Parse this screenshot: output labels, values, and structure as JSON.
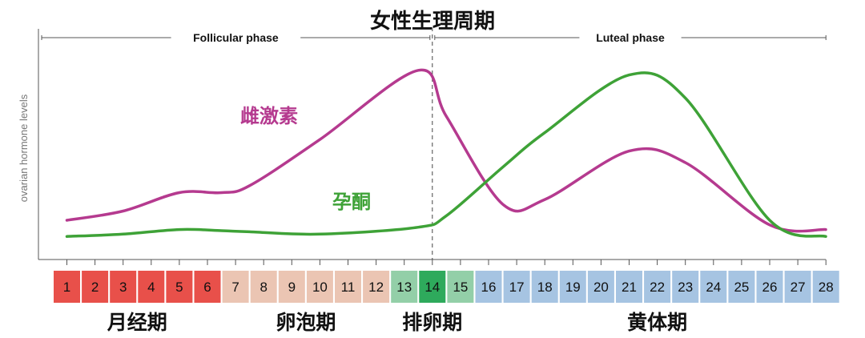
{
  "chart_data": {
    "type": "line",
    "title": "女性生理周期",
    "ylabel": "ovarian hormone levels",
    "xlabel": "",
    "x": [
      1,
      3,
      5,
      6.5,
      7.5,
      10,
      13.5,
      14.5,
      16.5,
      18,
      21,
      23,
      26,
      28
    ],
    "xlim": [
      0.5,
      28
    ],
    "ylim": [
      0,
      100
    ],
    "grid": false,
    "series": [
      {
        "name": "雌激素",
        "color": "#b53a8f",
        "values": [
          17,
          21,
          29,
          29,
          32,
          52,
          82,
          62,
          24,
          26,
          47,
          42,
          15,
          13
        ]
      },
      {
        "name": "孕酮",
        "color": "#3ea237",
        "values": [
          10,
          11,
          13,
          12.5,
          12,
          11,
          14,
          19,
          40,
          55,
          80,
          70,
          17,
          10
        ]
      }
    ],
    "phases": [
      {
        "label": "Follicular phase",
        "from_day": 0.5,
        "to_day": 14
      },
      {
        "label": "Luteal phase",
        "from_day": 14,
        "to_day": 28
      }
    ],
    "ovulation_marker_day": 14,
    "days": [
      1,
      2,
      3,
      4,
      5,
      6,
      7,
      8,
      9,
      10,
      11,
      12,
      13,
      14,
      15,
      16,
      17,
      18,
      19,
      20,
      21,
      22,
      23,
      24,
      25,
      26,
      27,
      28
    ],
    "day_colors": [
      "#e8504a",
      "#e8504a",
      "#e8504a",
      "#e8504a",
      "#e8504a",
      "#e8504a",
      "#ebc5b3",
      "#ebc5b3",
      "#ebc5b3",
      "#ebc5b3",
      "#ebc5b3",
      "#ebc5b3",
      "#93cfa8",
      "#2eaa5c",
      "#93cfa8",
      "#a6c4e2",
      "#a6c4e2",
      "#a6c4e2",
      "#a6c4e2",
      "#a6c4e2",
      "#a6c4e2",
      "#a6c4e2",
      "#a6c4e2",
      "#a6c4e2",
      "#a6c4e2",
      "#a6c4e2",
      "#a6c4e2",
      "#a6c4e2"
    ],
    "stages": [
      {
        "label": "月经期",
        "from_day": 1,
        "to_day": 6
      },
      {
        "label": "卵泡期",
        "from_day": 7,
        "to_day": 12
      },
      {
        "label": "排卵期",
        "from_day": 13,
        "to_day": 15
      },
      {
        "label": "黄体期",
        "from_day": 16,
        "to_day": 28
      }
    ]
  }
}
